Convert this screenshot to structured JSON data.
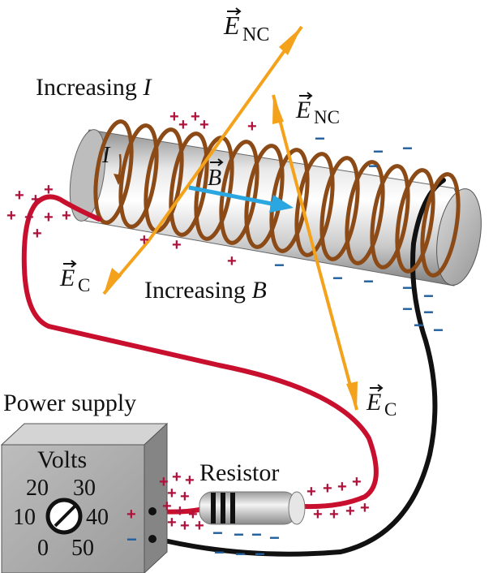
{
  "labels": {
    "increasing_i": "Increasing",
    "increasing_i_var": "I",
    "current_i": "I",
    "b_field": "B",
    "enc_top_main": "E",
    "enc_top_sub": "NC",
    "enc_mid_main": "E",
    "enc_mid_sub": "NC",
    "ec_left_main": "E",
    "ec_left_sub": "C",
    "ec_right_main": "E",
    "ec_right_sub": "C",
    "increasing_b": "Increasing",
    "increasing_b_var": "B",
    "power_supply": "Power supply",
    "resistor": "Resistor",
    "volts": "Volts"
  },
  "dial": {
    "ticks": [
      "20",
      "30",
      "10",
      "40",
      "0",
      "50"
    ]
  },
  "terminals": {
    "positive": "+",
    "negative": "−"
  },
  "charges": {
    "plus_symbol": "+",
    "minus_symbol": "−"
  },
  "colors": {
    "wire_positive": "#c8102e",
    "wire_negative": "#111111",
    "coil": "#8b4a16",
    "field_arrows": "#f4a21c",
    "b_arrow": "#2aa6e0",
    "plus_charge": "#b0103a",
    "minus_charge": "#1f5fa0",
    "power_box": "#a9a9a9"
  }
}
